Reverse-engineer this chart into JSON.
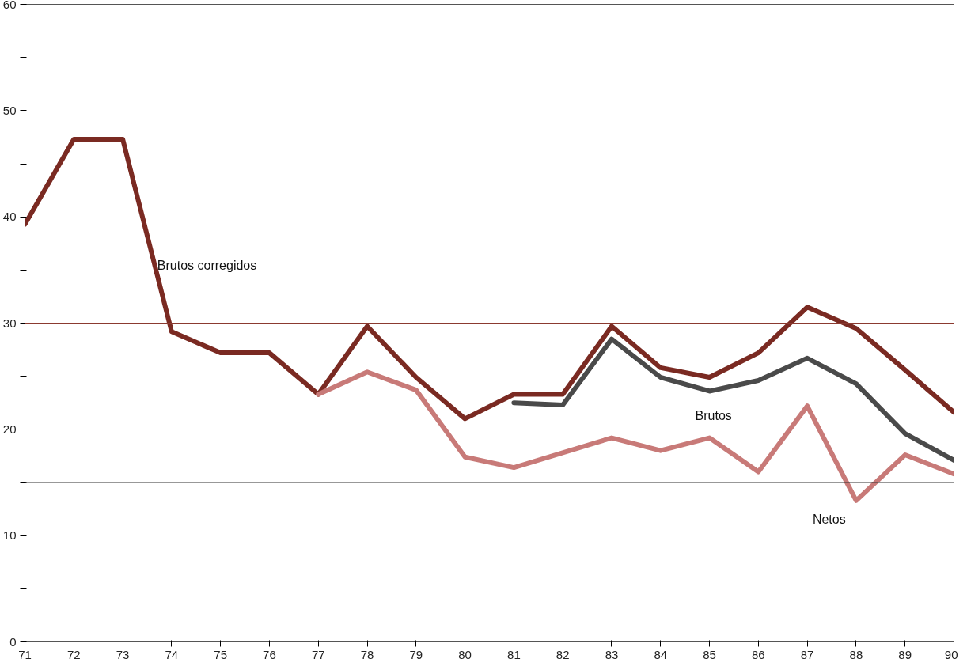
{
  "chart_data": {
    "type": "line",
    "x": [
      71,
      72,
      73,
      74,
      75,
      76,
      77,
      78,
      79,
      80,
      81,
      82,
      83,
      84,
      85,
      86,
      87,
      88,
      89,
      90
    ],
    "series": [
      {
        "name": "Brutos corregidos",
        "color": "#7a2a22",
        "values": [
          39.3,
          47.3,
          47.3,
          29.2,
          27.2,
          27.2,
          23.3,
          29.7,
          24.9,
          21.0,
          23.3,
          23.3,
          29.7,
          25.8,
          24.9,
          27.2,
          31.5,
          29.5,
          25.6,
          21.6
        ]
      },
      {
        "name": "Brutos",
        "color": "#4a4a4a",
        "values": [
          null,
          null,
          null,
          null,
          null,
          null,
          null,
          null,
          null,
          null,
          22.5,
          22.3,
          28.5,
          24.9,
          23.6,
          24.6,
          26.7,
          24.3,
          19.6,
          17.1
        ]
      },
      {
        "name": "Netos",
        "color": "#c87a78",
        "values": [
          null,
          null,
          null,
          null,
          null,
          null,
          23.3,
          25.4,
          23.7,
          17.4,
          16.4,
          17.8,
          19.2,
          18.0,
          19.2,
          16.0,
          22.2,
          13.3,
          17.6,
          15.8
        ]
      }
    ],
    "xlim": [
      71,
      90
    ],
    "xticks": [
      71,
      72,
      73,
      74,
      75,
      76,
      77,
      78,
      79,
      80,
      81,
      82,
      83,
      84,
      85,
      86,
      87,
      88,
      89,
      90
    ],
    "ylim": [
      0,
      60
    ],
    "yticks": [
      0,
      {
        "value": 5,
        "label": null
      },
      10,
      {
        "value": 15,
        "label": null
      },
      20,
      {
        "value": 25,
        "label": null
      },
      30,
      {
        "value": 35,
        "label": null
      },
      40,
      {
        "value": 45,
        "label": null
      },
      50,
      {
        "value": 55,
        "label": null
      },
      60
    ],
    "ref_lines": [
      {
        "axis": "y",
        "value": 30,
        "color": "#8b3a30"
      },
      {
        "axis": "y",
        "value": 15,
        "color": "#333333"
      }
    ],
    "grid": false,
    "marker": "none",
    "line_style": "solid"
  }
}
